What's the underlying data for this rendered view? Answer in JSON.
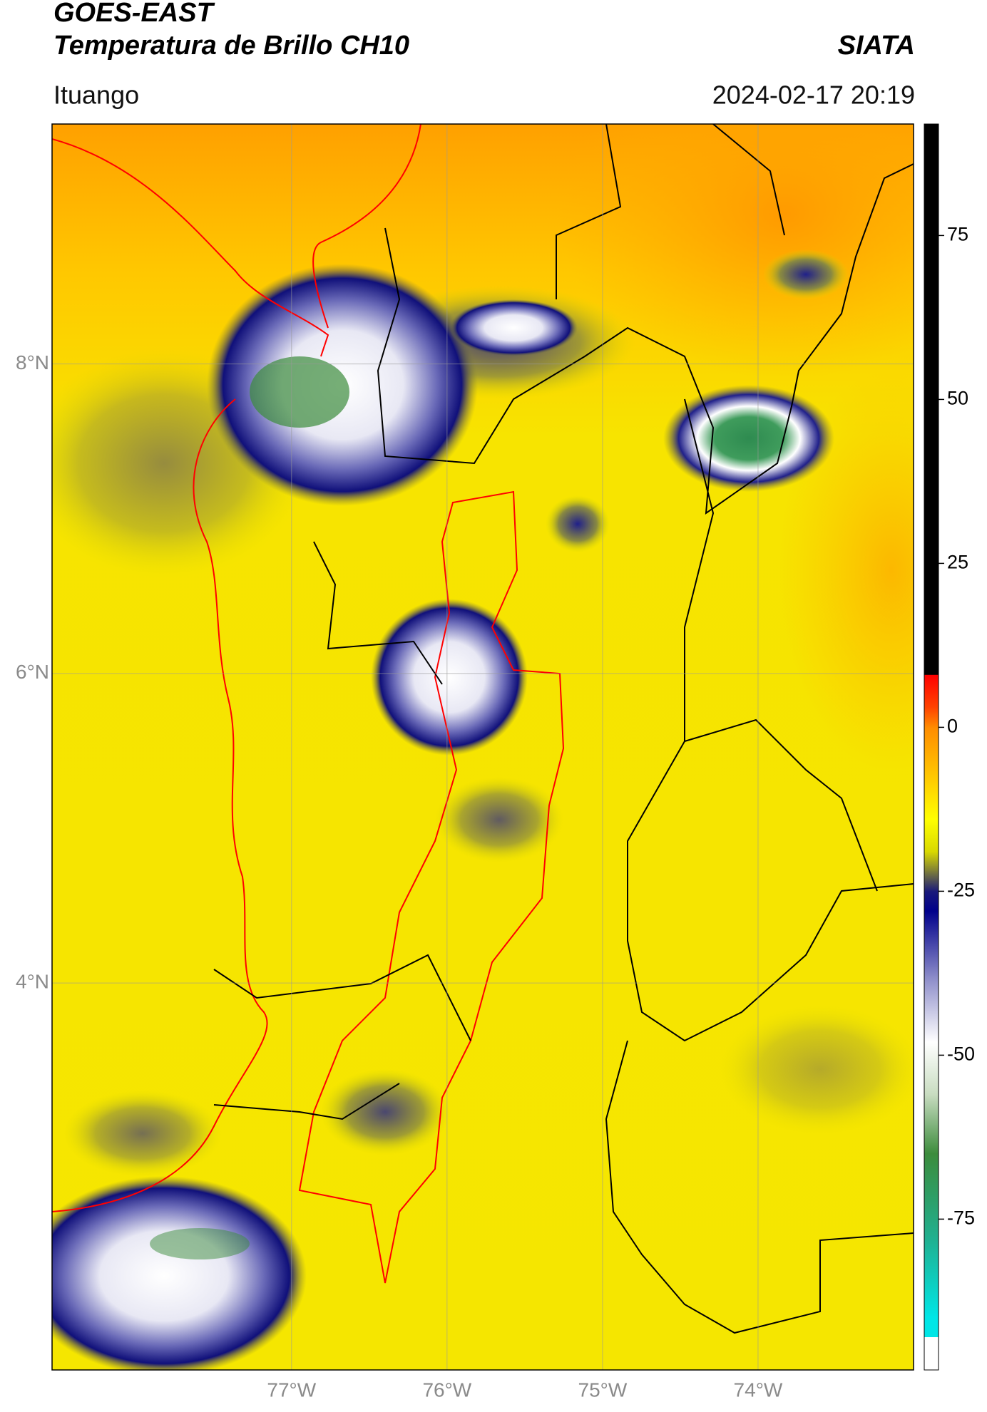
{
  "header": {
    "title": "GOES-EAST",
    "subtitle": "Temperatura de Brillo CH10",
    "source": "SIATA",
    "location": "Ituango",
    "datetime": "2024-02-17 20:19"
  },
  "map": {
    "xlim": [
      -78.54,
      -73.0
    ],
    "ylim": [
      1.5,
      9.55
    ],
    "xticks": [
      {
        "value": -77,
        "label": "77°W"
      },
      {
        "value": -76,
        "label": "76°W"
      },
      {
        "value": -75,
        "label": "75°W"
      },
      {
        "value": -74,
        "label": "74°W"
      }
    ],
    "yticks": [
      {
        "value": 8,
        "label": "8°N"
      },
      {
        "value": 6,
        "label": "6°N"
      },
      {
        "value": 4,
        "label": "4°N"
      }
    ],
    "grid": true
  },
  "colorbar": {
    "lim": [
      -98,
      92
    ],
    "ticks": [
      75,
      50,
      25,
      0,
      -25,
      -50,
      -75
    ],
    "colormap": [
      {
        "value": 92,
        "color": "#000000"
      },
      {
        "value": 8,
        "color": "#000000"
      },
      {
        "value": 8,
        "color": "#ff0000"
      },
      {
        "value": 3,
        "color": "#ff4400"
      },
      {
        "value": 0,
        "color": "#ff8c00"
      },
      {
        "value": -8,
        "color": "#ffcc00"
      },
      {
        "value": -14,
        "color": "#ffff00"
      },
      {
        "value": -19,
        "color": "#d8d800"
      },
      {
        "value": -22,
        "color": "#7a7a3a"
      },
      {
        "value": -25,
        "color": "#1a1a7a"
      },
      {
        "value": -28,
        "color": "#00008b"
      },
      {
        "value": -38,
        "color": "#8a8ac8"
      },
      {
        "value": -48,
        "color": "#ffffff"
      },
      {
        "value": -56,
        "color": "#c8dcc0"
      },
      {
        "value": -65,
        "color": "#3c8c3c"
      },
      {
        "value": -78,
        "color": "#20b090"
      },
      {
        "value": -90,
        "color": "#00e6e6"
      },
      {
        "value": -93,
        "color": "#00e6e6"
      },
      {
        "value": -93,
        "color": "#ffffff"
      },
      {
        "value": -98,
        "color": "#ffffff"
      }
    ]
  }
}
